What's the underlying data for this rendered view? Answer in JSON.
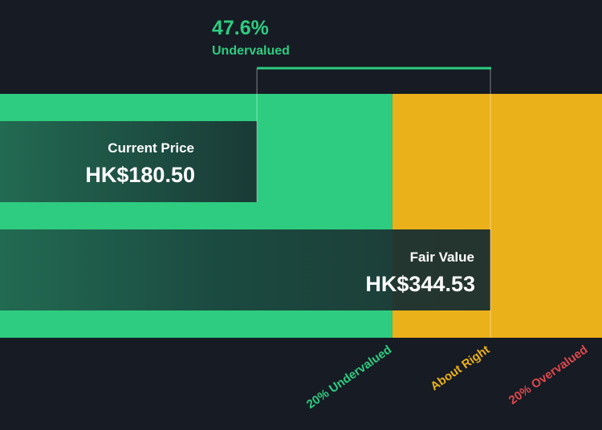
{
  "chart_data": {
    "type": "bar",
    "title": "",
    "currency": "HK$",
    "current_price": {
      "label": "Current Price",
      "value": 180.5,
      "display": "HK$180.50"
    },
    "fair_value": {
      "label": "Fair Value",
      "value": 344.53,
      "display": "HK$344.53"
    },
    "discount": {
      "percent": 47.6,
      "display": "47.6%",
      "label": "Undervalued"
    },
    "zones": [
      {
        "label": "20% Undervalued",
        "color": "#2ecc80"
      },
      {
        "label": "About Right",
        "color": "#ebb11a"
      },
      {
        "label": "20% Overvalued",
        "color": "#e0474c"
      }
    ],
    "colors": {
      "background": "#161b24",
      "undervalued": "#2ecc80",
      "about_right": "#ebb11a",
      "overvalued": "#e0474c",
      "bar_overlay": "#1a2b2e"
    }
  }
}
